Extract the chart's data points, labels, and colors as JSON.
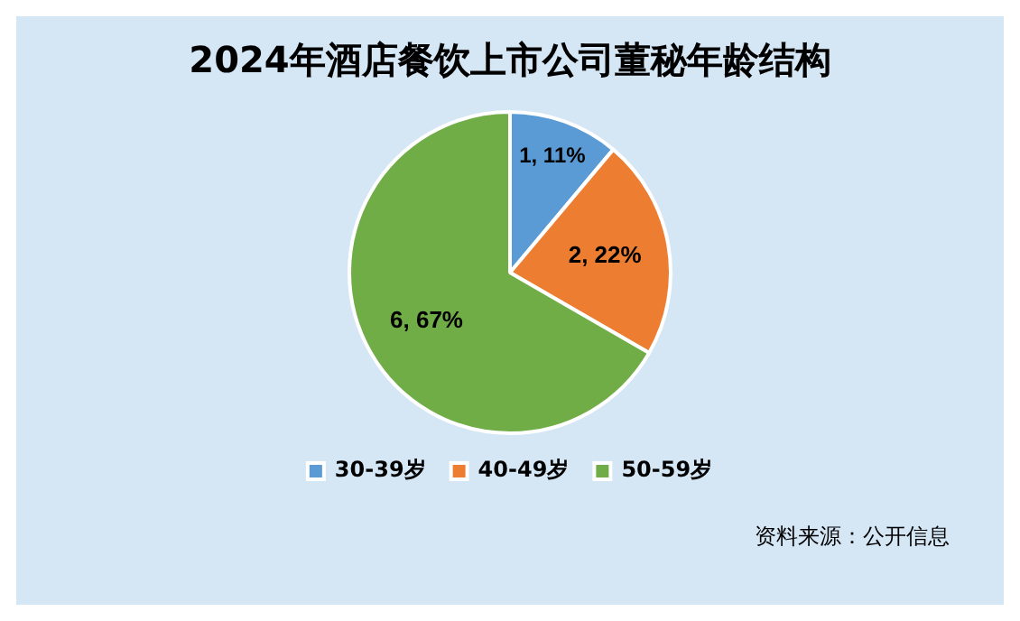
{
  "chart_data": {
    "type": "pie",
    "title": "2024年酒店餐饮上市公司董秘年龄结构",
    "categories": [
      "30-39岁",
      "40-49岁",
      "50-59岁"
    ],
    "values": [
      1,
      2,
      6
    ],
    "colors": [
      "#5b9bd5",
      "#ed7d31",
      "#70ad47"
    ],
    "value_labels": [
      "1, 11%",
      "2, 22%",
      "6, 67%"
    ],
    "legend": "bottom",
    "annotations": [
      "资料来源：公开信息"
    ]
  }
}
